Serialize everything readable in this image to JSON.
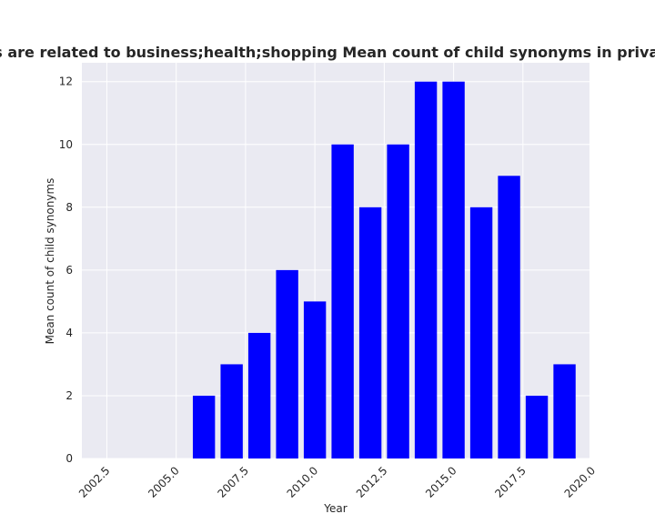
{
  "chart_data": {
    "type": "bar",
    "title": "Categories are related to business;health;shopping Mean count of child synonyms in privacy policies",
    "xlabel": "Year",
    "ylabel": "Mean count of child synonyms",
    "x": [
      2006,
      2007,
      2008,
      2009,
      2010,
      2011,
      2012,
      2013,
      2014,
      2015,
      2016,
      2017,
      2018,
      2019
    ],
    "values": [
      2,
      3,
      4,
      6,
      5,
      10,
      8,
      10,
      12,
      12,
      8,
      9,
      2,
      3
    ],
    "xlim": [
      2001.6,
      2019.9
    ],
    "ylim": [
      0,
      12.6
    ],
    "xticks": [
      "2002.5",
      "2005.0",
      "2007.5",
      "2010.0",
      "2012.5",
      "2015.0",
      "2017.5",
      "2020.0"
    ],
    "yticks": [
      "0",
      "2",
      "4",
      "6",
      "8",
      "10",
      "12"
    ],
    "bar_color": "#0000ff",
    "plot_background": "#eaeaf2",
    "grid": true
  }
}
